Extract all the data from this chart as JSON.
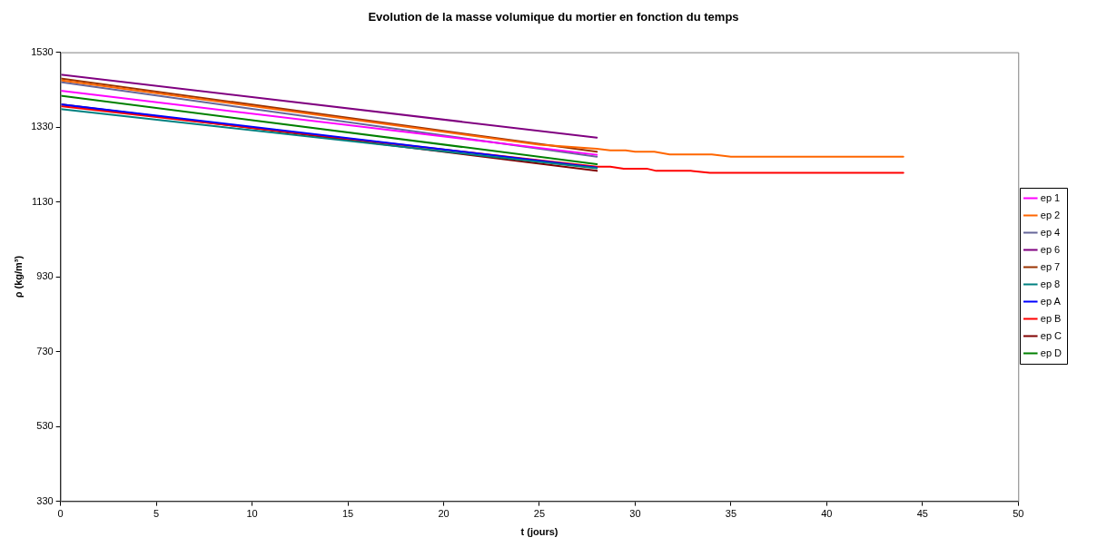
{
  "chart_data": {
    "type": "line",
    "title": "Evolution de la masse volumique du mortier en fonction du temps",
    "xlabel": "t (jours)",
    "ylabel": "ρ (kg/m³)",
    "xlim": [
      0,
      50
    ],
    "xticks": [
      0,
      5,
      10,
      15,
      20,
      25,
      30,
      35,
      40,
      45,
      50
    ],
    "ylim": [
      330,
      1530
    ],
    "yticks": [
      330,
      530,
      730,
      930,
      1130,
      1330,
      1530
    ],
    "grid": false,
    "legend": "right",
    "marker": "none",
    "line_style": "solid",
    "series": [
      {
        "name": "ep 1",
        "color": "#ff00ff",
        "x": [
          0,
          28
        ],
        "values": [
          1427,
          1256
        ]
      },
      {
        "name": "ep 2",
        "color": "#ff6600",
        "x": [
          0,
          25,
          28,
          28.7,
          29.5,
          30,
          31,
          31.8,
          34,
          35,
          44
        ],
        "values": [
          1455,
          1283,
          1272,
          1268,
          1268,
          1264,
          1264,
          1257,
          1257,
          1251,
          1251
        ]
      },
      {
        "name": "ep 4",
        "color": "#666699",
        "x": [
          0,
          28
        ],
        "values": [
          1450,
          1251
        ]
      },
      {
        "name": "ep 6",
        "color": "#800080",
        "x": [
          0,
          28
        ],
        "values": [
          1470,
          1302
        ]
      },
      {
        "name": "ep 7",
        "color": "#993300",
        "x": [
          0,
          28
        ],
        "values": [
          1460,
          1264
        ]
      },
      {
        "name": "ep 8",
        "color": "#008080",
        "x": [
          0,
          28
        ],
        "values": [
          1378,
          1220
        ]
      },
      {
        "name": "ep A",
        "color": "#0000ff",
        "x": [
          0,
          28
        ],
        "values": [
          1391,
          1222
        ]
      },
      {
        "name": "ep B",
        "color": "#ff0000",
        "x": [
          0,
          28,
          28.7,
          29.4,
          30.6,
          31.1,
          32.9,
          33.9,
          44
        ],
        "values": [
          1386,
          1224,
          1224,
          1219,
          1219,
          1213,
          1213,
          1208,
          1208
        ]
      },
      {
        "name": "ep C",
        "color": "#800000",
        "x": [
          0,
          28
        ],
        "values": [
          1391,
          1213
        ]
      },
      {
        "name": "ep D",
        "color": "#008000",
        "x": [
          0,
          28
        ],
        "values": [
          1414,
          1231
        ]
      }
    ]
  }
}
